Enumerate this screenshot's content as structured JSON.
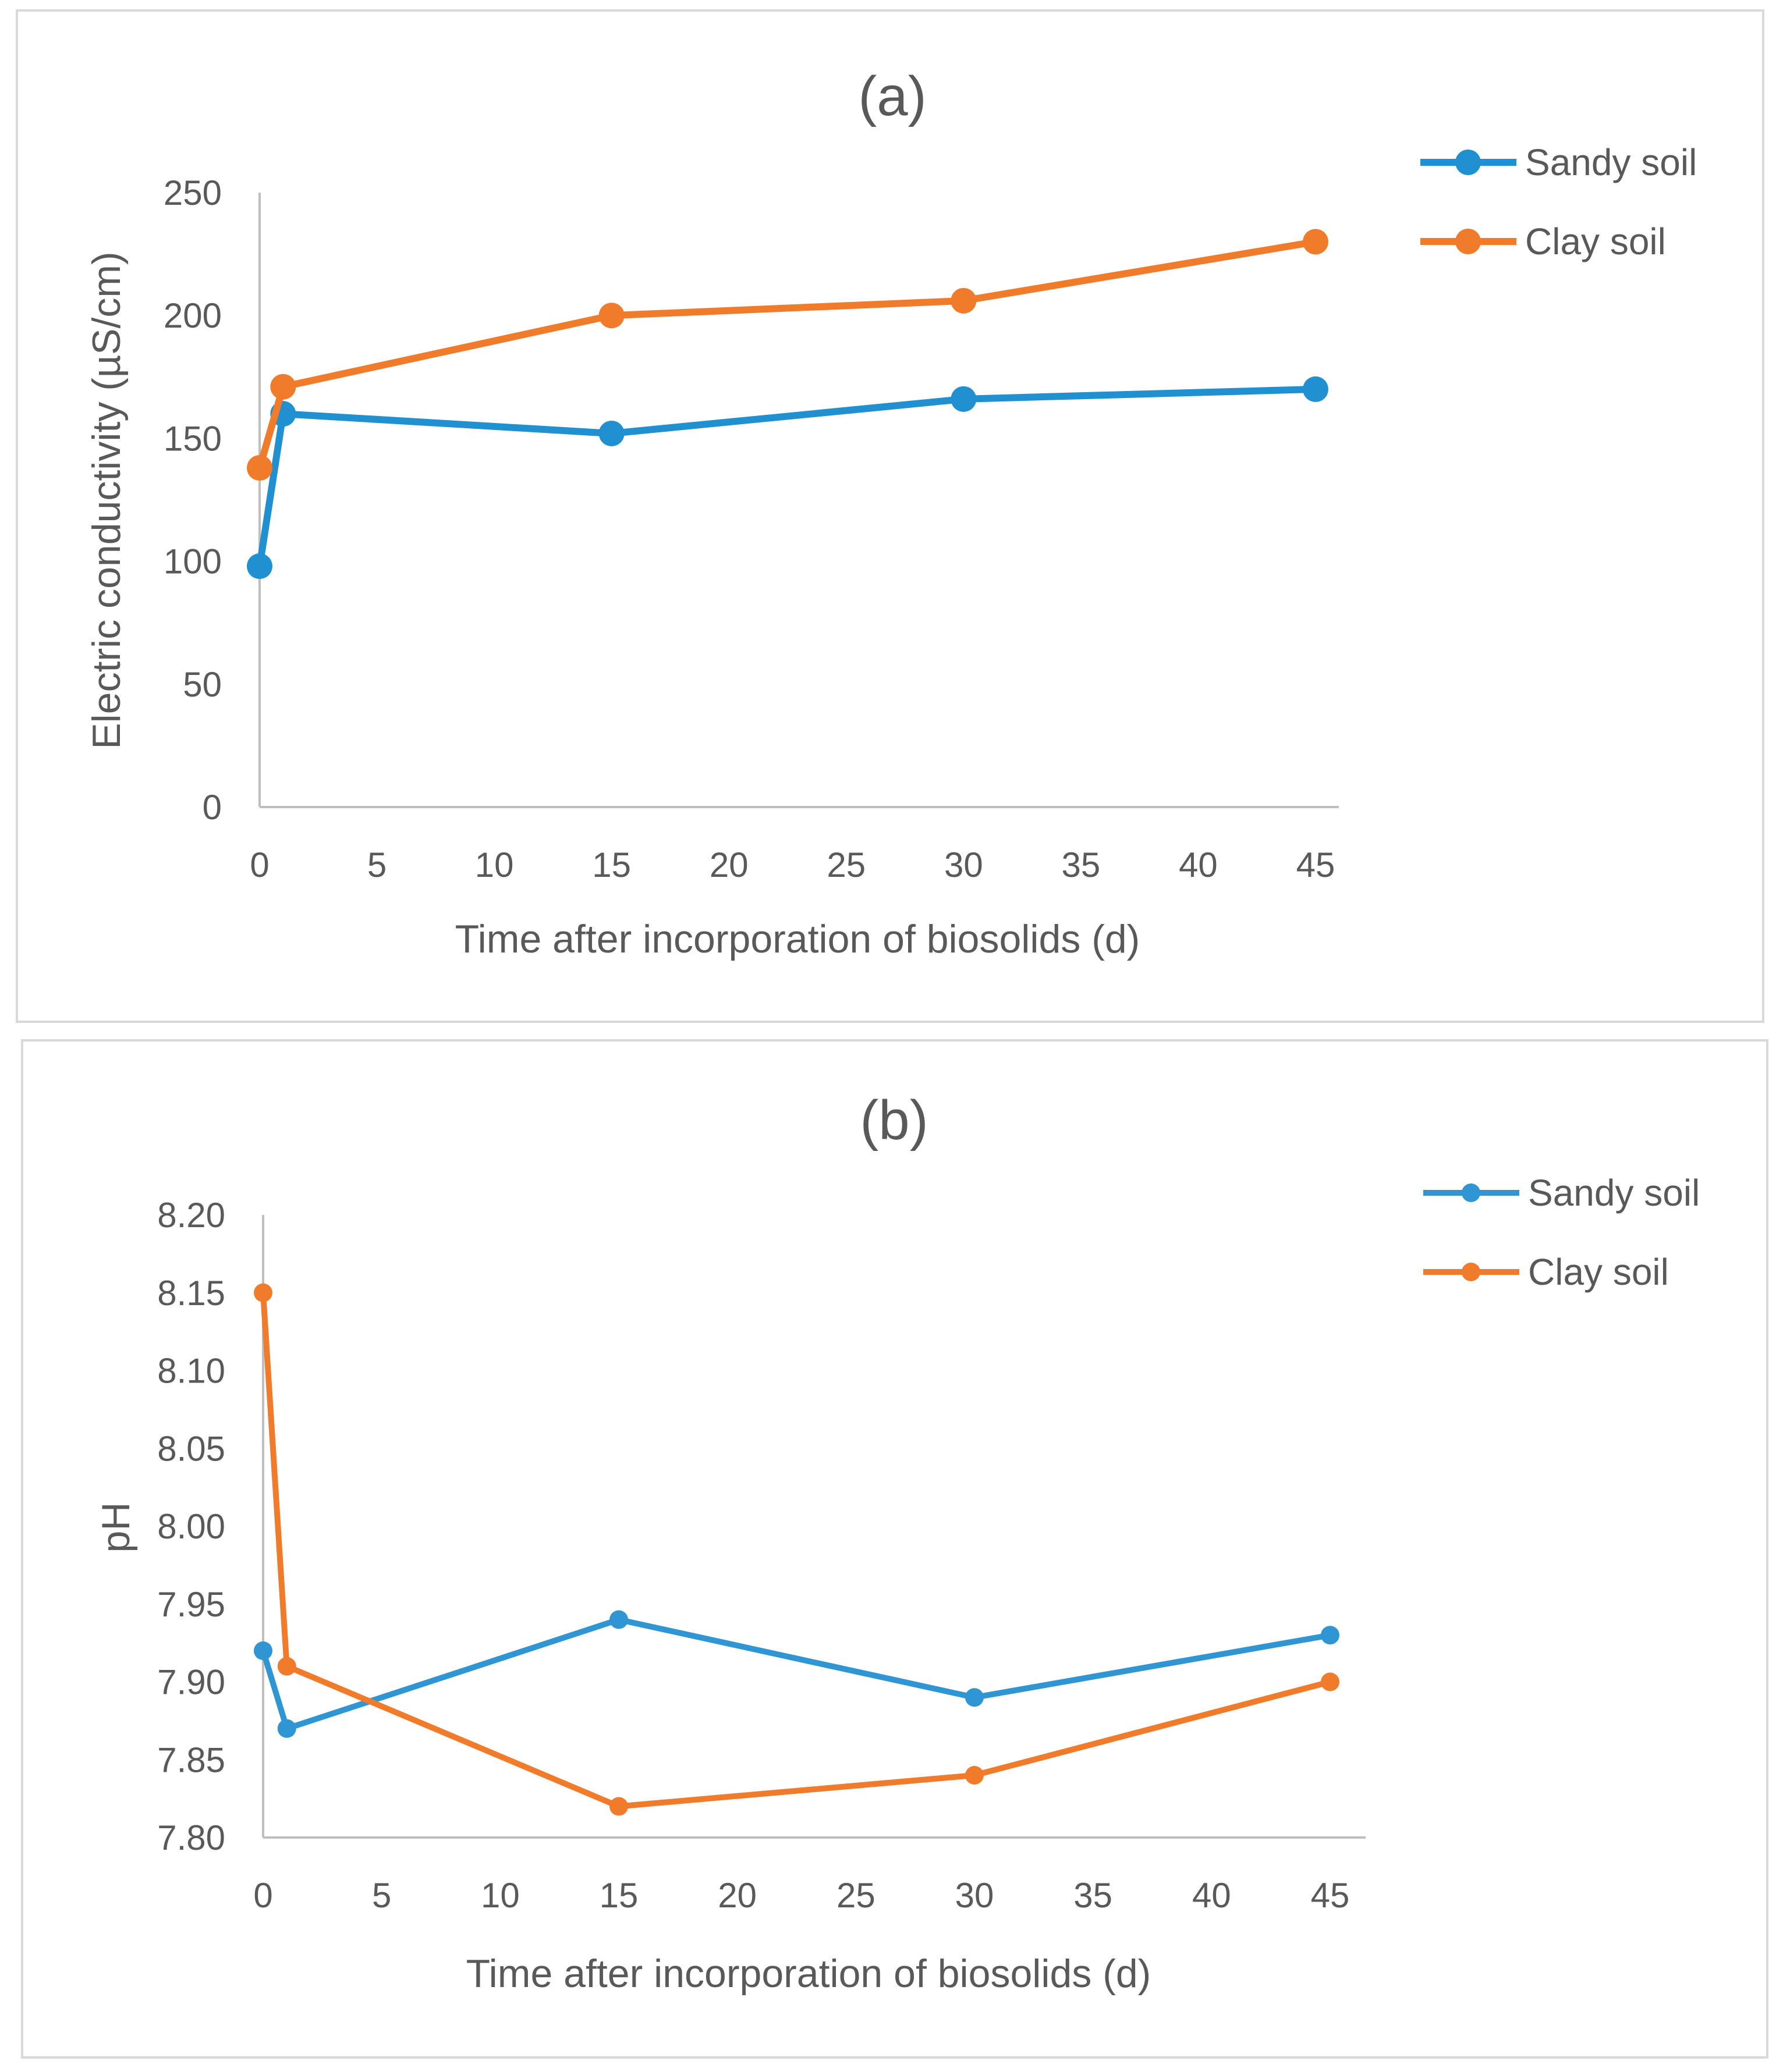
{
  "chart_data": [
    {
      "type": "line",
      "title": "(a)",
      "xlabel": "Time after incorporation of biosolids (d)",
      "ylabel": "Electric conductivity (µS/cm)",
      "x": [
        0,
        1,
        15,
        30,
        45
      ],
      "xlim": [
        0,
        45
      ],
      "xticks": [
        "0",
        "5",
        "10",
        "15",
        "20",
        "25",
        "30",
        "35",
        "40",
        "45"
      ],
      "ylim": [
        0,
        250
      ],
      "yticks": [
        "0",
        "50",
        "100",
        "150",
        "200",
        "250"
      ],
      "grid": false,
      "legend_position": "right",
      "series": [
        {
          "name": "Sandy soil",
          "color": "#2090d0",
          "values": [
            98,
            160,
            152,
            166,
            170
          ]
        },
        {
          "name": "Clay soil",
          "color": "#f07b2a",
          "values": [
            138,
            171,
            200,
            206,
            230
          ]
        }
      ]
    },
    {
      "type": "line",
      "title": "(b)",
      "xlabel": "Time after incorporation of biosolids (d)",
      "ylabel": "pH",
      "x": [
        0,
        1,
        15,
        30,
        45
      ],
      "xlim": [
        0,
        45
      ],
      "xticks": [
        "0",
        "5",
        "10",
        "15",
        "20",
        "25",
        "30",
        "35",
        "40",
        "45"
      ],
      "ylim": [
        7.8,
        8.2
      ],
      "yticks": [
        "7.80",
        "7.85",
        "7.90",
        "7.95",
        "8.00",
        "8.05",
        "8.10",
        "8.15",
        "8.20"
      ],
      "grid": false,
      "legend_position": "right",
      "series": [
        {
          "name": "Sandy soil",
          "color": "#2f95d3",
          "values": [
            7.92,
            7.87,
            7.94,
            7.89,
            7.93
          ]
        },
        {
          "name": "Clay soil",
          "color": "#f07b2a",
          "values": [
            8.15,
            7.91,
            7.82,
            7.84,
            7.9
          ]
        }
      ]
    }
  ]
}
